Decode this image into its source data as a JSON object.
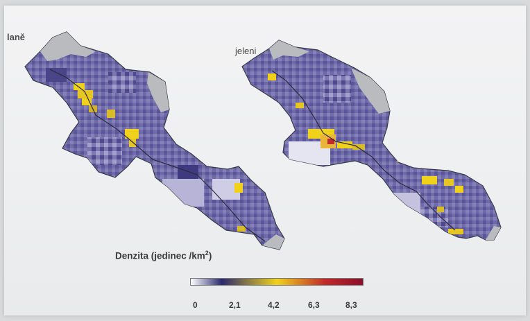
{
  "labels": {
    "left_species": "laně",
    "right_species": "jeleni"
  },
  "legend": {
    "title": "Denzita (jedinec /km",
    "title_sup": "2",
    "title_end": ")",
    "ticks": [
      "0",
      "2,1",
      "4,2",
      "6,3",
      "8,3"
    ],
    "colors": {
      "zero": "#ffffff",
      "low": "#2b2a6e",
      "mid": "#f0d21c",
      "high": "#c02a2a",
      "max": "#8b0f2a",
      "no_data": "#b9bbbe"
    }
  }
}
